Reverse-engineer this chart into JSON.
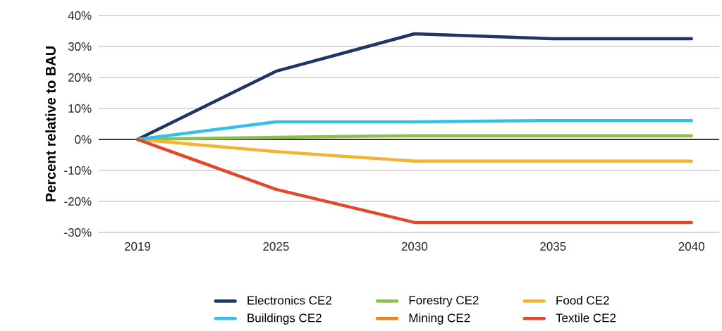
{
  "chart_data": {
    "type": "line",
    "ylabel": "Percent relative to BAU",
    "categories": [
      "2019",
      "2025",
      "2030",
      "2035",
      "2040"
    ],
    "series": [
      {
        "name": "Electronics CE2",
        "color": "#1f3564",
        "values": [
          0,
          22.0,
          34.1,
          32.5,
          32.5
        ]
      },
      {
        "name": "Forestry CE2",
        "color": "#8cc04a",
        "values": [
          0,
          0.7,
          1.2,
          1.2,
          1.2
        ]
      },
      {
        "name": "Food CE2",
        "color": "#f5b335",
        "values": [
          0,
          -3.9,
          -7.0,
          -7.0,
          -7.0
        ]
      },
      {
        "name": "Buildings CE2",
        "color": "#35c0ec",
        "values": [
          0,
          5.7,
          5.7,
          6.1,
          6.1
        ]
      },
      {
        "name": "Mining CE2",
        "color": "#f0821e",
        "values": [
          null,
          null,
          null,
          null,
          null
        ]
      },
      {
        "name": "Textile CE2",
        "color": "#e04a2a",
        "values": [
          0,
          -16.1,
          -26.8,
          -26.8,
          -26.8
        ]
      }
    ],
    "ylim": [
      -30,
      40
    ],
    "yticks": [
      {
        "value": -30,
        "label": "-30%"
      },
      {
        "value": -20,
        "label": "-20%"
      },
      {
        "value": -10,
        "label": "-10%"
      },
      {
        "value": 0,
        "label": "0%"
      },
      {
        "value": 10,
        "label": "10%"
      },
      {
        "value": 20,
        "label": "20%"
      },
      {
        "value": 30,
        "label": "30%"
      },
      {
        "value": 40,
        "label": "40%"
      }
    ],
    "ref_lines": [
      {
        "axis": "y",
        "value": 0,
        "color": "#000000"
      }
    ],
    "grid": "y",
    "legend": "bottom"
  }
}
